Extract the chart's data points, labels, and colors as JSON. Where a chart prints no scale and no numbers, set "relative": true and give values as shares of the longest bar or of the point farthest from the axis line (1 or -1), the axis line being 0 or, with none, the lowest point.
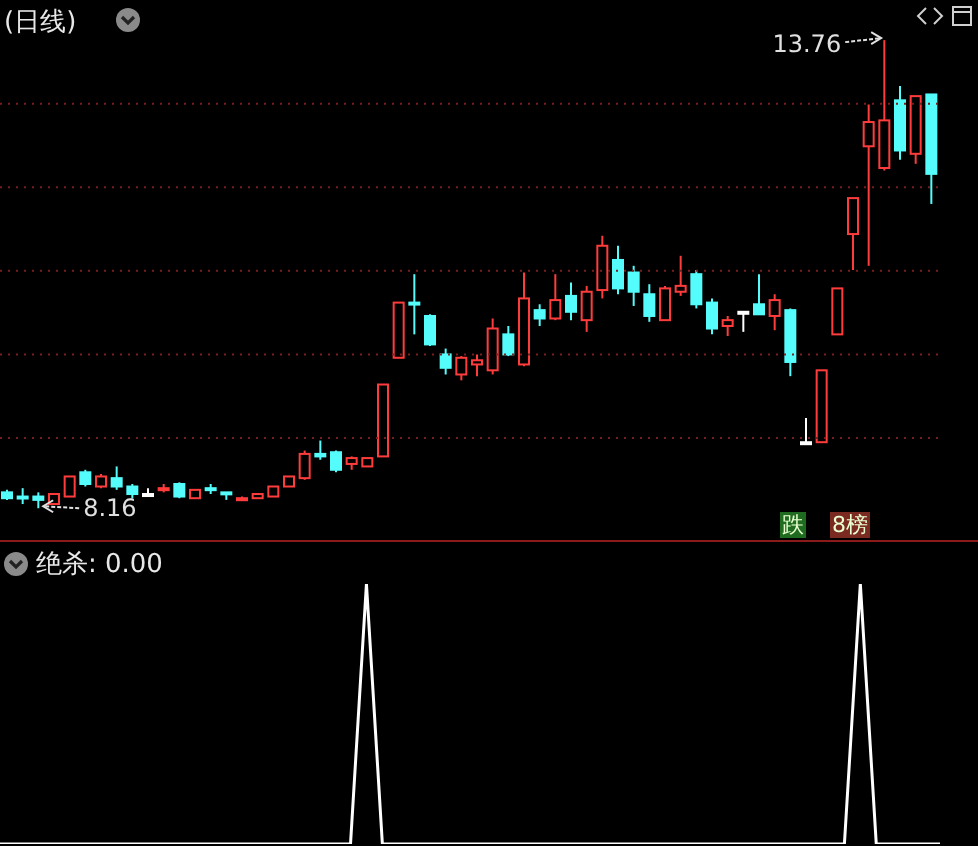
{
  "chart_data": [
    {
      "type": "candlestick",
      "title": "(日线)",
      "categories": [
        null,
        null,
        null,
        null,
        null,
        null,
        null,
        null,
        null,
        null,
        null,
        null,
        null,
        null,
        null,
        null,
        null,
        null,
        null,
        null,
        null,
        null,
        null,
        null,
        null,
        null,
        null,
        null,
        null,
        null,
        null,
        null,
        null,
        null,
        null,
        null,
        null,
        null,
        null,
        null,
        null,
        null,
        null,
        null,
        null,
        null,
        null,
        null,
        null,
        null,
        null,
        null,
        null,
        null,
        null,
        null,
        null,
        null,
        null,
        null
      ],
      "ohlc": [
        [
          8.35,
          8.38,
          8.26,
          8.28
        ],
        [
          8.3,
          8.4,
          8.21,
          8.28
        ],
        [
          8.3,
          8.35,
          8.16,
          8.26
        ],
        [
          8.21,
          8.33,
          8.21,
          8.33
        ],
        [
          8.3,
          8.54,
          8.3,
          8.54
        ],
        [
          8.59,
          8.62,
          8.42,
          8.45
        ],
        [
          8.42,
          8.57,
          8.4,
          8.54
        ],
        [
          8.52,
          8.66,
          8.38,
          8.42
        ],
        [
          8.42,
          8.45,
          8.28,
          8.33
        ],
        [
          8.33,
          8.4,
          8.33,
          8.33
        ],
        [
          8.38,
          8.45,
          8.35,
          8.4
        ],
        [
          8.45,
          8.47,
          8.28,
          8.3
        ],
        [
          8.28,
          8.38,
          8.28,
          8.38
        ],
        [
          8.4,
          8.45,
          8.33,
          8.38
        ],
        [
          8.35,
          8.35,
          8.26,
          8.33
        ],
        [
          8.26,
          8.3,
          8.26,
          8.28
        ],
        [
          8.28,
          8.33,
          8.28,
          8.33
        ],
        [
          8.3,
          8.42,
          8.3,
          8.42
        ],
        [
          8.42,
          8.54,
          8.42,
          8.54
        ],
        [
          8.52,
          8.85,
          8.5,
          8.81
        ],
        [
          8.81,
          8.97,
          8.74,
          8.78
        ],
        [
          8.83,
          8.85,
          8.59,
          8.62
        ],
        [
          8.69,
          8.78,
          8.62,
          8.76
        ],
        [
          8.66,
          8.76,
          8.66,
          8.76
        ],
        [
          8.78,
          9.64,
          8.78,
          9.64
        ],
        [
          9.96,
          10.62,
          9.96,
          10.62
        ],
        [
          10.62,
          10.96,
          10.24,
          10.6
        ],
        [
          10.46,
          10.48,
          10.1,
          10.12
        ],
        [
          10.0,
          10.07,
          9.76,
          9.84
        ],
        [
          9.76,
          9.98,
          9.69,
          9.96
        ],
        [
          9.88,
          10.0,
          9.74,
          9.93
        ],
        [
          9.81,
          10.43,
          9.76,
          10.31
        ],
        [
          10.24,
          10.34,
          9.98,
          10.0
        ],
        [
          9.88,
          10.98,
          9.86,
          10.67
        ],
        [
          10.53,
          10.6,
          10.34,
          10.43
        ],
        [
          10.43,
          10.96,
          10.41,
          10.65
        ],
        [
          10.7,
          10.86,
          10.41,
          10.51
        ],
        [
          10.41,
          10.82,
          10.27,
          10.75
        ],
        [
          10.77,
          11.42,
          10.67,
          11.3
        ],
        [
          11.13,
          11.3,
          10.72,
          10.79
        ],
        [
          10.98,
          11.06,
          10.58,
          10.75
        ],
        [
          10.72,
          10.84,
          10.39,
          10.46
        ],
        [
          10.41,
          10.82,
          10.41,
          10.79
        ],
        [
          10.75,
          11.18,
          10.7,
          10.82
        ],
        [
          10.96,
          11.01,
          10.55,
          10.6
        ],
        [
          10.62,
          10.67,
          10.24,
          10.31
        ],
        [
          10.34,
          10.46,
          10.22,
          10.41
        ],
        [
          10.51,
          10.51,
          10.27,
          10.51
        ],
        [
          10.6,
          10.96,
          10.48,
          10.48
        ],
        [
          10.46,
          10.72,
          10.29,
          10.65
        ],
        [
          10.53,
          10.55,
          9.74,
          9.91
        ],
        [
          8.95,
          9.24,
          8.93,
          8.95
        ],
        [
          8.95,
          9.81,
          8.95,
          9.81
        ],
        [
          10.24,
          10.79,
          10.24,
          10.79
        ],
        [
          11.44,
          11.87,
          11.01,
          11.87
        ],
        [
          12.49,
          12.99,
          11.06,
          12.78
        ],
        [
          12.23,
          13.76,
          12.2,
          12.8
        ],
        [
          13.04,
          13.21,
          12.33,
          12.44
        ],
        [
          12.4,
          13.09,
          12.28,
          13.09
        ],
        [
          13.11,
          13.11,
          11.8,
          12.16
        ]
      ],
      "colors": [
        "#54fcfc",
        "#54fcfc",
        "#54fcfc",
        "#ff3c3c",
        "#ff3c3c",
        "#54fcfc",
        "#ff3c3c",
        "#54fcfc",
        "#54fcfc",
        "#ffffff",
        "#ff3c3c",
        "#54fcfc",
        "#ff3c3c",
        "#54fcfc",
        "#54fcfc",
        "#ff3c3c",
        "#ff3c3c",
        "#ff3c3c",
        "#ff3c3c",
        "#ff3c3c",
        "#54fcfc",
        "#54fcfc",
        "#ff3c3c",
        "#ff3c3c",
        "#ff3c3c",
        "#ff3c3c",
        "#54fcfc",
        "#54fcfc",
        "#54fcfc",
        "#ff3c3c",
        "#ff3c3c",
        "#ff3c3c",
        "#54fcfc",
        "#ff3c3c",
        "#54fcfc",
        "#ff3c3c",
        "#54fcfc",
        "#ff3c3c",
        "#ff3c3c",
        "#54fcfc",
        "#54fcfc",
        "#54fcfc",
        "#ff3c3c",
        "#ff3c3c",
        "#54fcfc",
        "#54fcfc",
        "#ff3c3c",
        "#ffffff",
        "#54fcfc",
        "#ff3c3c",
        "#54fcfc",
        "#ffffff",
        "#ff3c3c",
        "#ff3c3c",
        "#ff3c3c",
        "#ff3c3c",
        "#ff3c3c",
        "#54fcfc",
        "#ff3c3c",
        "#54fcfc"
      ],
      "ylim": [
        7.78,
        14.24
      ],
      "yticks": [
        {
          "value": 9,
          "label": null
        },
        {
          "value": 10,
          "label": null
        },
        {
          "value": 11,
          "label": null
        },
        {
          "value": 12,
          "label": null
        },
        {
          "value": 13,
          "label": null
        }
      ],
      "grid": "y",
      "annotations": [
        "跌",
        "8榜",
        "13.76",
        "8.16"
      ]
    },
    {
      "type": "line",
      "title": "绝杀: 0.00",
      "relative": true,
      "categories": [
        null,
        null,
        null,
        null,
        null,
        null,
        null,
        null,
        null,
        null,
        null,
        null,
        null,
        null,
        null,
        null,
        null,
        null,
        null,
        null,
        null,
        null,
        null,
        null,
        null,
        null,
        null,
        null,
        null,
        null,
        null,
        null,
        null,
        null,
        null,
        null,
        null,
        null,
        null,
        null,
        null,
        null,
        null,
        null,
        null,
        null,
        null,
        null,
        null,
        null,
        null,
        null,
        null,
        null,
        null,
        null,
        null,
        null,
        null,
        null
      ],
      "series": [
        {
          "color": "#ffffff",
          "values": [
            0,
            0,
            0,
            0,
            0,
            0,
            0,
            0,
            0,
            0,
            0,
            0,
            0,
            0,
            0,
            0,
            0,
            0,
            0,
            0,
            0,
            0,
            0,
            1,
            0,
            0,
            0,
            0,
            0,
            0,
            0,
            0,
            0,
            0,
            0,
            0,
            0,
            0,
            0,
            0,
            0,
            0,
            0,
            0,
            0,
            0,
            0,
            0,
            0,
            0,
            0,
            0,
            0,
            0,
            1,
            0,
            0,
            0,
            0,
            0
          ]
        }
      ]
    }
  ]
}
